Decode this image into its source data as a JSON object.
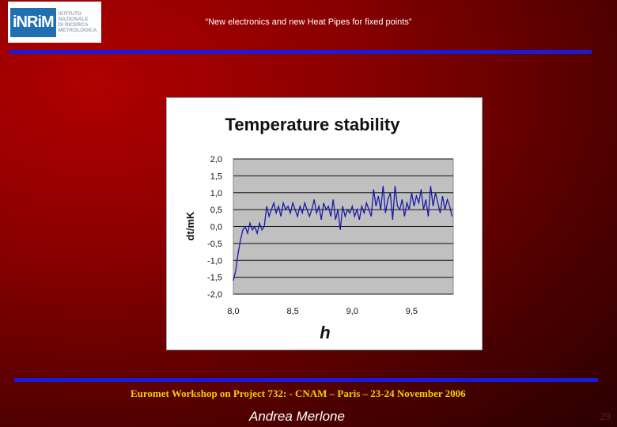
{
  "header": {
    "logo_mark": "iNRiM",
    "logo_lines": [
      "ISTITUTO",
      "NAZIONALE",
      "DI RICERCA",
      "METROLOGICA"
    ],
    "title": "“New electronics and  new Heat Pipes for fixed points”"
  },
  "footer": {
    "event": "Euromet Workshop on Project 732: - CNAM – Paris – 23-24 November 2006",
    "author": "Andrea Merlone",
    "page_number": "29"
  },
  "colors": {
    "rule": "#1a1adc",
    "footer_text": "#f0d000",
    "plot_bg": "#c0c0c0",
    "series": "#1a1aa8"
  },
  "chart_data": {
    "type": "line",
    "title": "Temperature stability",
    "xlabel": "h",
    "ylabel": "dt/mK",
    "xlim": [
      8.0,
      9.85
    ],
    "ylim": [
      -2.0,
      2.0
    ],
    "xticks": [
      "8,0",
      "8,5",
      "9,0",
      "9,5"
    ],
    "xtick_values": [
      8.0,
      8.5,
      9.0,
      9.5
    ],
    "yticks": [
      "2,0",
      "1,5",
      "1,0",
      "0,5",
      "0,0",
      "-0,5",
      "-1,0",
      "-1,5",
      "-2,0"
    ],
    "ytick_values": [
      2.0,
      1.5,
      1.0,
      0.5,
      0.0,
      -0.5,
      -1.0,
      -1.5,
      -2.0
    ],
    "grid": "horizontal",
    "series": [
      {
        "x": [
          8.0,
          8.02,
          8.04,
          8.06,
          8.08,
          8.1,
          8.12,
          8.14,
          8.16,
          8.18,
          8.2,
          8.22,
          8.24,
          8.26,
          8.28,
          8.3,
          8.32,
          8.34,
          8.36,
          8.38,
          8.4,
          8.42,
          8.44,
          8.46,
          8.48,
          8.5,
          8.52,
          8.54,
          8.56,
          8.58,
          8.6,
          8.62,
          8.64,
          8.66,
          8.68,
          8.7,
          8.72,
          8.74,
          8.76,
          8.78,
          8.8,
          8.82,
          8.84,
          8.86,
          8.88,
          8.9,
          8.92,
          8.94,
          8.96,
          8.98,
          9.0,
          9.02,
          9.04,
          9.06,
          9.08,
          9.1,
          9.12,
          9.14,
          9.16,
          9.18,
          9.2,
          9.22,
          9.24,
          9.26,
          9.28,
          9.3,
          9.32,
          9.34,
          9.36,
          9.38,
          9.4,
          9.42,
          9.44,
          9.46,
          9.48,
          9.5,
          9.52,
          9.54,
          9.56,
          9.58,
          9.6,
          9.62,
          9.64,
          9.66,
          9.68,
          9.7,
          9.72,
          9.74,
          9.76,
          9.78,
          9.8,
          9.82,
          9.84
        ],
        "y": [
          -1.6,
          -1.3,
          -0.8,
          -0.4,
          -0.1,
          0.0,
          -0.2,
          0.1,
          -0.1,
          0.0,
          -0.2,
          0.1,
          -0.1,
          0.0,
          0.6,
          0.3,
          0.5,
          0.7,
          0.4,
          0.6,
          0.3,
          0.7,
          0.5,
          0.6,
          0.4,
          0.7,
          0.5,
          0.3,
          0.6,
          0.4,
          0.7,
          0.5,
          0.3,
          0.5,
          0.8,
          0.4,
          0.6,
          0.2,
          0.7,
          0.5,
          0.6,
          0.3,
          0.8,
          0.2,
          0.5,
          -0.1,
          0.6,
          0.3,
          0.5,
          0.4,
          0.6,
          0.3,
          0.5,
          0.2,
          0.6,
          0.4,
          0.7,
          0.5,
          0.3,
          1.1,
          0.6,
          0.9,
          0.5,
          1.2,
          0.4,
          0.8,
          1.0,
          0.2,
          1.2,
          0.6,
          0.5,
          0.8,
          0.3,
          0.7,
          0.5,
          1.0,
          0.6,
          0.9,
          0.7,
          1.1,
          0.5,
          0.8,
          0.3,
          1.2,
          0.6,
          1.0,
          0.7,
          0.4,
          0.9,
          0.5,
          0.8,
          0.6,
          0.3
        ]
      }
    ]
  }
}
